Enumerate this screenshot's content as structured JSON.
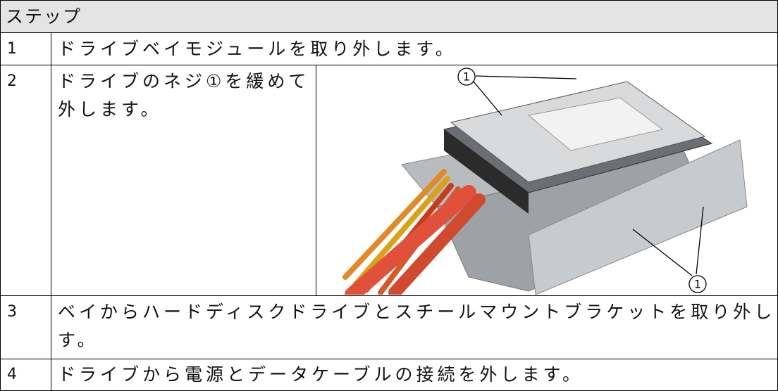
{
  "header": {
    "title": "ステップ"
  },
  "table": {
    "rows": [
      {
        "step": "1",
        "lines": [
          "ドライブベイモジュールを取り外します。"
        ]
      },
      {
        "step": "2",
        "lines": [
          "ドライブのネジ①を緩めて",
          "外します。"
        ]
      },
      {
        "step": "3",
        "lines": [
          "ベイからハードディスクドライブとスチールマウントブラケットを取り外しま",
          "す。"
        ]
      },
      {
        "step": "4",
        "lines": [
          "ドライブから電源とデータケーブルの接続を外します。"
        ]
      }
    ]
  },
  "image": {
    "callouts": [
      "1",
      "1"
    ]
  }
}
